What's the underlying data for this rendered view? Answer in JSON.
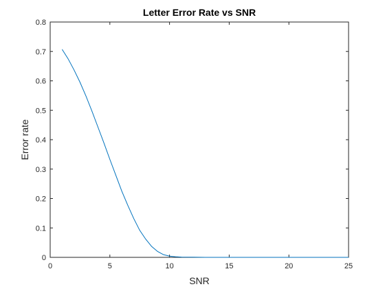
{
  "chart_data": {
    "type": "line",
    "title": "Letter Error Rate vs SNR",
    "xlabel": "SNR",
    "ylabel": "Error rate",
    "xlim": [
      0,
      25
    ],
    "ylim": [
      0,
      0.8
    ],
    "xticks": [
      0,
      5,
      10,
      15,
      20,
      25
    ],
    "yticks": [
      0,
      0.1,
      0.2,
      0.3,
      0.4,
      0.5,
      0.6,
      0.7,
      0.8
    ],
    "xtick_labels": [
      "0",
      "5",
      "10",
      "15",
      "20",
      "25"
    ],
    "ytick_labels": [
      "0",
      "0.1",
      "0.2",
      "0.3",
      "0.4",
      "0.5",
      "0.6",
      "0.7",
      "0.8"
    ],
    "grid": false,
    "series": [
      {
        "color": "#0072BD",
        "x": [
          1,
          1.5,
          2,
          2.5,
          3,
          3.5,
          4,
          4.5,
          5,
          5.5,
          6,
          6.5,
          7,
          7.5,
          8,
          8.5,
          9,
          9.5,
          10,
          10.5,
          11,
          12,
          13,
          14,
          15,
          16,
          17,
          18,
          19,
          20,
          21,
          22,
          23,
          24,
          25
        ],
        "y": [
          0.707,
          0.675,
          0.637,
          0.595,
          0.548,
          0.497,
          0.443,
          0.389,
          0.333,
          0.279,
          0.225,
          0.177,
          0.132,
          0.092,
          0.062,
          0.037,
          0.02,
          0.009,
          0.004,
          0.002,
          0.001,
          0.0005,
          0,
          0,
          0,
          0,
          0,
          0,
          0,
          0,
          0,
          0,
          0,
          0,
          0
        ]
      }
    ]
  }
}
